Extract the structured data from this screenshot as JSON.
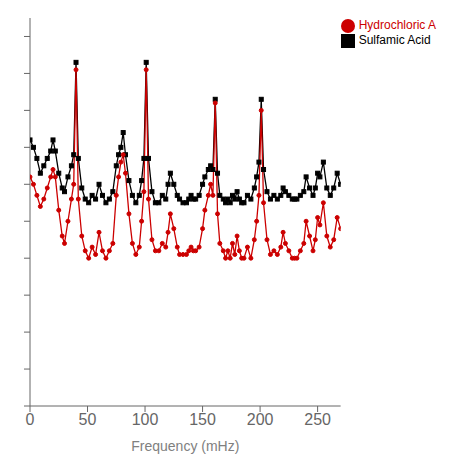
{
  "chart_data": {
    "type": "line",
    "title": "",
    "xlabel": "Frequency (mHz)",
    "xlim": [
      0,
      270
    ],
    "xticks": [
      0,
      50,
      100,
      150,
      200,
      250
    ],
    "ylim": [
      0,
      1.05
    ],
    "yticks": [
      0,
      0.1,
      0.2,
      0.3,
      0.4,
      0.5,
      0.6,
      0.7,
      0.8,
      0.9,
      1.0
    ],
    "tick_labels": "x",
    "grid": false,
    "legend": "upper right",
    "x": [
      0,
      3,
      6,
      9,
      12,
      15,
      18,
      20,
      22,
      25,
      28,
      30,
      33,
      36,
      38,
      40,
      42,
      45,
      48,
      51,
      54,
      57,
      60,
      63,
      66,
      69,
      72,
      75,
      77,
      79,
      81,
      83,
      86,
      89,
      92,
      95,
      97,
      99,
      101,
      103,
      106,
      109,
      112,
      115,
      118,
      120,
      122,
      125,
      128,
      130,
      133,
      136,
      138,
      140,
      142,
      144,
      147,
      150,
      152,
      155,
      157,
      159,
      161,
      163,
      165,
      168,
      170,
      172,
      174,
      176,
      178,
      180,
      182,
      184,
      186,
      189,
      192,
      195,
      197,
      199,
      201,
      203,
      206,
      209,
      212,
      215,
      218,
      220,
      222,
      225,
      228,
      230,
      232,
      235,
      238,
      240,
      243,
      246,
      248,
      250,
      252,
      255,
      258,
      261,
      264,
      267,
      270
    ],
    "series": [
      {
        "name": "Sulfamic Acid",
        "color": "#000000",
        "marker": "square",
        "values": [
          0.72,
          0.7,
          0.67,
          0.63,
          0.65,
          0.67,
          0.69,
          0.72,
          0.69,
          0.63,
          0.59,
          0.58,
          0.62,
          0.65,
          0.68,
          0.93,
          0.67,
          0.59,
          0.56,
          0.55,
          0.57,
          0.56,
          0.6,
          0.57,
          0.55,
          0.56,
          0.58,
          0.65,
          0.68,
          0.7,
          0.74,
          0.68,
          0.61,
          0.57,
          0.55,
          0.57,
          0.61,
          0.67,
          0.93,
          0.67,
          0.58,
          0.55,
          0.55,
          0.57,
          0.56,
          0.6,
          0.63,
          0.6,
          0.57,
          0.56,
          0.55,
          0.55,
          0.56,
          0.57,
          0.56,
          0.56,
          0.57,
          0.6,
          0.62,
          0.64,
          0.65,
          0.64,
          0.83,
          0.63,
          0.57,
          0.56,
          0.55,
          0.56,
          0.55,
          0.57,
          0.56,
          0.58,
          0.56,
          0.55,
          0.55,
          0.57,
          0.56,
          0.59,
          0.62,
          0.66,
          0.83,
          0.64,
          0.58,
          0.56,
          0.57,
          0.56,
          0.57,
          0.59,
          0.58,
          0.57,
          0.56,
          0.56,
          0.56,
          0.57,
          0.58,
          0.62,
          0.59,
          0.57,
          0.59,
          0.63,
          0.62,
          0.66,
          0.59,
          0.57,
          0.59,
          0.63,
          0.6
        ]
      },
      {
        "name": "Hydrochloric A",
        "color": "#cc0000",
        "marker": "circle",
        "values": [
          0.62,
          0.6,
          0.57,
          0.54,
          0.56,
          0.59,
          0.62,
          0.64,
          0.62,
          0.53,
          0.46,
          0.44,
          0.5,
          0.56,
          0.6,
          0.91,
          0.56,
          0.46,
          0.42,
          0.4,
          0.43,
          0.41,
          0.47,
          0.42,
          0.4,
          0.42,
          0.44,
          0.57,
          0.62,
          0.66,
          0.68,
          0.63,
          0.52,
          0.44,
          0.41,
          0.43,
          0.5,
          0.58,
          0.91,
          0.56,
          0.45,
          0.42,
          0.42,
          0.44,
          0.43,
          0.47,
          0.52,
          0.48,
          0.43,
          0.41,
          0.41,
          0.41,
          0.42,
          0.43,
          0.42,
          0.42,
          0.43,
          0.48,
          0.53,
          0.57,
          0.6,
          0.57,
          0.82,
          0.52,
          0.44,
          0.42,
          0.4,
          0.42,
          0.4,
          0.44,
          0.41,
          0.46,
          0.42,
          0.4,
          0.4,
          0.43,
          0.4,
          0.45,
          0.5,
          0.57,
          0.8,
          0.55,
          0.45,
          0.41,
          0.42,
          0.41,
          0.43,
          0.47,
          0.44,
          0.42,
          0.4,
          0.4,
          0.4,
          0.42,
          0.44,
          0.5,
          0.46,
          0.42,
          0.45,
          0.51,
          0.49,
          0.55,
          0.46,
          0.43,
          0.45,
          0.51,
          0.48
        ]
      }
    ]
  }
}
